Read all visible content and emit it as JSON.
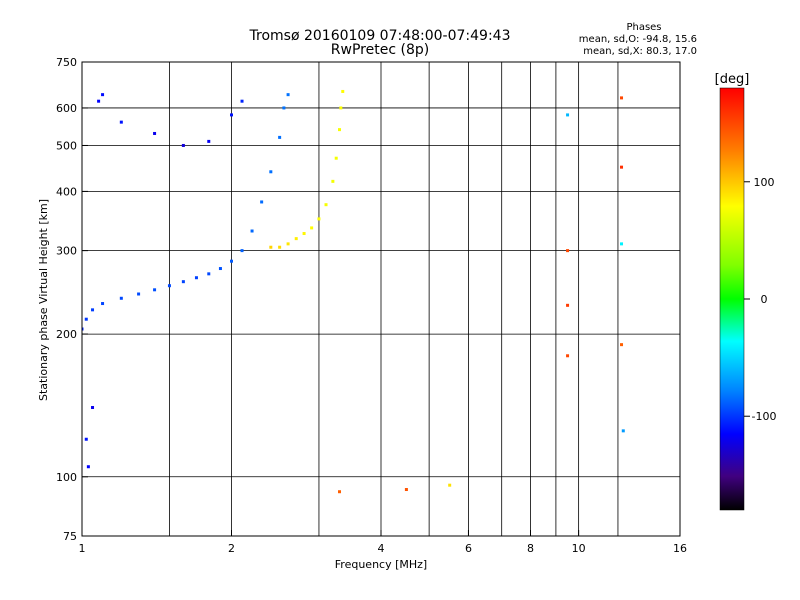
{
  "chart_data": {
    "type": "scatter",
    "title": "Tromsø 20160109 07:48:00-07:49:43",
    "subtitle": "RwPretec (8p)",
    "stats_title": "Phases",
    "stats_line1": "mean, sd,O: -94.8, 15.6",
    "stats_line2": "mean, sd,X:  80.3, 17.0",
    "xlabel": "Frequency [MHz]",
    "ylabel": "Stationary phase Virtual Height [km]",
    "x_scale": "log",
    "y_scale": "log",
    "xlim": [
      1,
      16
    ],
    "ylim": [
      75,
      750
    ],
    "x_ticks": [
      1,
      2,
      4,
      6,
      8,
      10,
      16
    ],
    "x_tick_labels": [
      "1",
      "2",
      "4",
      "6",
      "8",
      "10",
      "16"
    ],
    "x_grid": [
      1.5,
      2,
      3,
      4,
      5,
      6,
      7,
      8,
      9,
      10,
      12,
      16
    ],
    "y_ticks": [
      75,
      100,
      200,
      300,
      400,
      500,
      600,
      750
    ],
    "y_tick_labels": [
      "75",
      "100",
      "200",
      "300",
      "400",
      "500",
      "600",
      "750"
    ],
    "y_grid": [
      100,
      200,
      300,
      400,
      500,
      600
    ],
    "grid": true,
    "colorbar": {
      "label": "[deg]",
      "range": [
        -180,
        180
      ],
      "ticks": [
        100,
        0,
        -100
      ],
      "tick_labels": [
        "100",
        "0",
        "-100"
      ]
    },
    "series": [
      {
        "name": "O",
        "values": [
          {
            "x": 1.0,
            "y": 205,
            "phase": -105
          },
          {
            "x": 1.02,
            "y": 215,
            "phase": -100
          },
          {
            "x": 1.05,
            "y": 225,
            "phase": -98
          },
          {
            "x": 1.1,
            "y": 232,
            "phase": -96
          },
          {
            "x": 1.2,
            "y": 238,
            "phase": -95
          },
          {
            "x": 1.3,
            "y": 243,
            "phase": -94
          },
          {
            "x": 1.4,
            "y": 248,
            "phase": -93
          },
          {
            "x": 1.5,
            "y": 253,
            "phase": -95
          },
          {
            "x": 1.6,
            "y": 258,
            "phase": -96
          },
          {
            "x": 1.7,
            "y": 263,
            "phase": -97
          },
          {
            "x": 1.8,
            "y": 268,
            "phase": -95
          },
          {
            "x": 1.9,
            "y": 275,
            "phase": -92
          },
          {
            "x": 2.0,
            "y": 285,
            "phase": -90
          },
          {
            "x": 2.1,
            "y": 300,
            "phase": -88
          },
          {
            "x": 2.2,
            "y": 330,
            "phase": -86
          },
          {
            "x": 2.3,
            "y": 380,
            "phase": -85
          },
          {
            "x": 2.4,
            "y": 440,
            "phase": -84
          },
          {
            "x": 2.5,
            "y": 520,
            "phase": -84
          },
          {
            "x": 2.55,
            "y": 600,
            "phase": -83
          },
          {
            "x": 2.6,
            "y": 640,
            "phase": -83
          },
          {
            "x": 1.02,
            "y": 120,
            "phase": -110
          },
          {
            "x": 1.03,
            "y": 105,
            "phase": -115
          },
          {
            "x": 1.05,
            "y": 140,
            "phase": -120
          },
          {
            "x": 1.08,
            "y": 620,
            "phase": -115
          },
          {
            "x": 1.1,
            "y": 640,
            "phase": -112
          },
          {
            "x": 1.2,
            "y": 560,
            "phase": -110
          },
          {
            "x": 1.4,
            "y": 530,
            "phase": -120
          },
          {
            "x": 1.6,
            "y": 500,
            "phase": -125
          },
          {
            "x": 1.8,
            "y": 510,
            "phase": -118
          },
          {
            "x": 2.0,
            "y": 580,
            "phase": -110
          },
          {
            "x": 2.1,
            "y": 620,
            "phase": -105
          }
        ]
      },
      {
        "name": "X",
        "values": [
          {
            "x": 2.4,
            "y": 305,
            "phase": 95
          },
          {
            "x": 2.5,
            "y": 305,
            "phase": 92
          },
          {
            "x": 2.6,
            "y": 310,
            "phase": 88
          },
          {
            "x": 2.7,
            "y": 318,
            "phase": 85
          },
          {
            "x": 2.8,
            "y": 326,
            "phase": 82
          },
          {
            "x": 2.9,
            "y": 335,
            "phase": 80
          },
          {
            "x": 3.0,
            "y": 350,
            "phase": 78
          },
          {
            "x": 3.1,
            "y": 375,
            "phase": 76
          },
          {
            "x": 3.2,
            "y": 420,
            "phase": 75
          },
          {
            "x": 3.25,
            "y": 470,
            "phase": 75
          },
          {
            "x": 3.3,
            "y": 540,
            "phase": 76
          },
          {
            "x": 3.32,
            "y": 600,
            "phase": 78
          },
          {
            "x": 3.35,
            "y": 650,
            "phase": 80
          },
          {
            "x": 3.3,
            "y": 93,
            "phase": 140
          },
          {
            "x": 4.5,
            "y": 94,
            "phase": 145
          },
          {
            "x": 5.5,
            "y": 96,
            "phase": 90
          },
          {
            "x": 9.5,
            "y": 580,
            "phase": -60
          },
          {
            "x": 9.5,
            "y": 300,
            "phase": 150
          },
          {
            "x": 9.5,
            "y": 230,
            "phase": 155
          },
          {
            "x": 9.5,
            "y": 180,
            "phase": 150
          },
          {
            "x": 12.2,
            "y": 630,
            "phase": 150
          },
          {
            "x": 12.2,
            "y": 450,
            "phase": 160
          },
          {
            "x": 12.2,
            "y": 310,
            "phase": -40
          },
          {
            "x": 12.2,
            "y": 190,
            "phase": 140
          },
          {
            "x": 12.3,
            "y": 125,
            "phase": -70
          }
        ]
      }
    ]
  }
}
